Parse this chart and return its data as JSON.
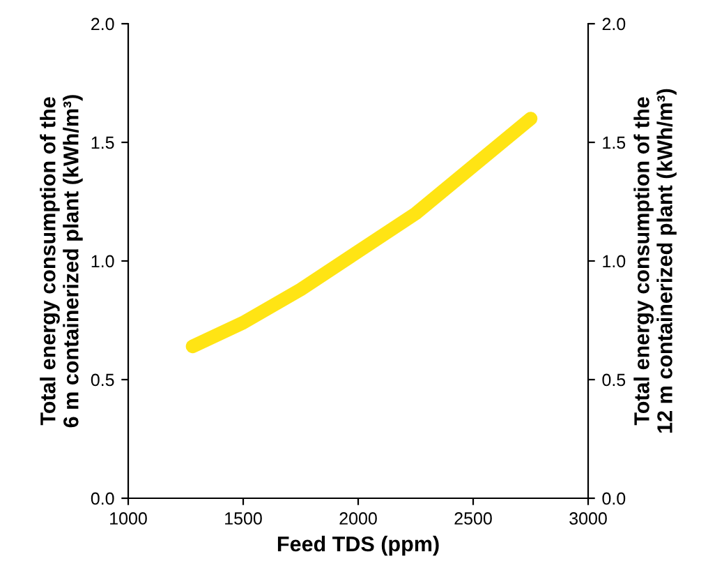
{
  "chart_data": {
    "type": "line",
    "xlabel": "Feed TDS (ppm)",
    "ylabel": "Total energy consumption of the\n6 m containerized plant (kWh/m³)",
    "y2label": "Total energy consumption of the\n12 m containerized plant (kWh/m³)",
    "x": [
      1280,
      1500,
      1750,
      2000,
      2250,
      2500,
      2750
    ],
    "series": [
      {
        "color": "#ffe414",
        "values": [
          0.64,
          0.74,
          0.88,
          1.04,
          1.2,
          1.4,
          1.6
        ]
      }
    ],
    "xlim": [
      1000,
      3000
    ],
    "xticks": [
      1000,
      1500,
      2000,
      2500,
      3000
    ],
    "ylim": [
      0,
      2
    ],
    "yticks": [
      {
        "value": 0,
        "label": "0.0"
      },
      {
        "value": 0.5,
        "label": "0.5"
      },
      {
        "value": 1,
        "label": "1.0"
      },
      {
        "value": 1.5,
        "label": "1.5"
      },
      {
        "value": 2,
        "label": "2.0"
      }
    ],
    "y2lim": [
      0,
      2
    ],
    "y2ticks": [
      {
        "value": 0,
        "label": "0.0"
      },
      {
        "value": 0.5,
        "label": "0.5"
      },
      {
        "value": 1,
        "label": "1.0"
      },
      {
        "value": 1.5,
        "label": "1.5"
      },
      {
        "value": 2,
        "label": "2.0"
      }
    ],
    "grid": false,
    "marker": "none",
    "line_style": "solid"
  }
}
